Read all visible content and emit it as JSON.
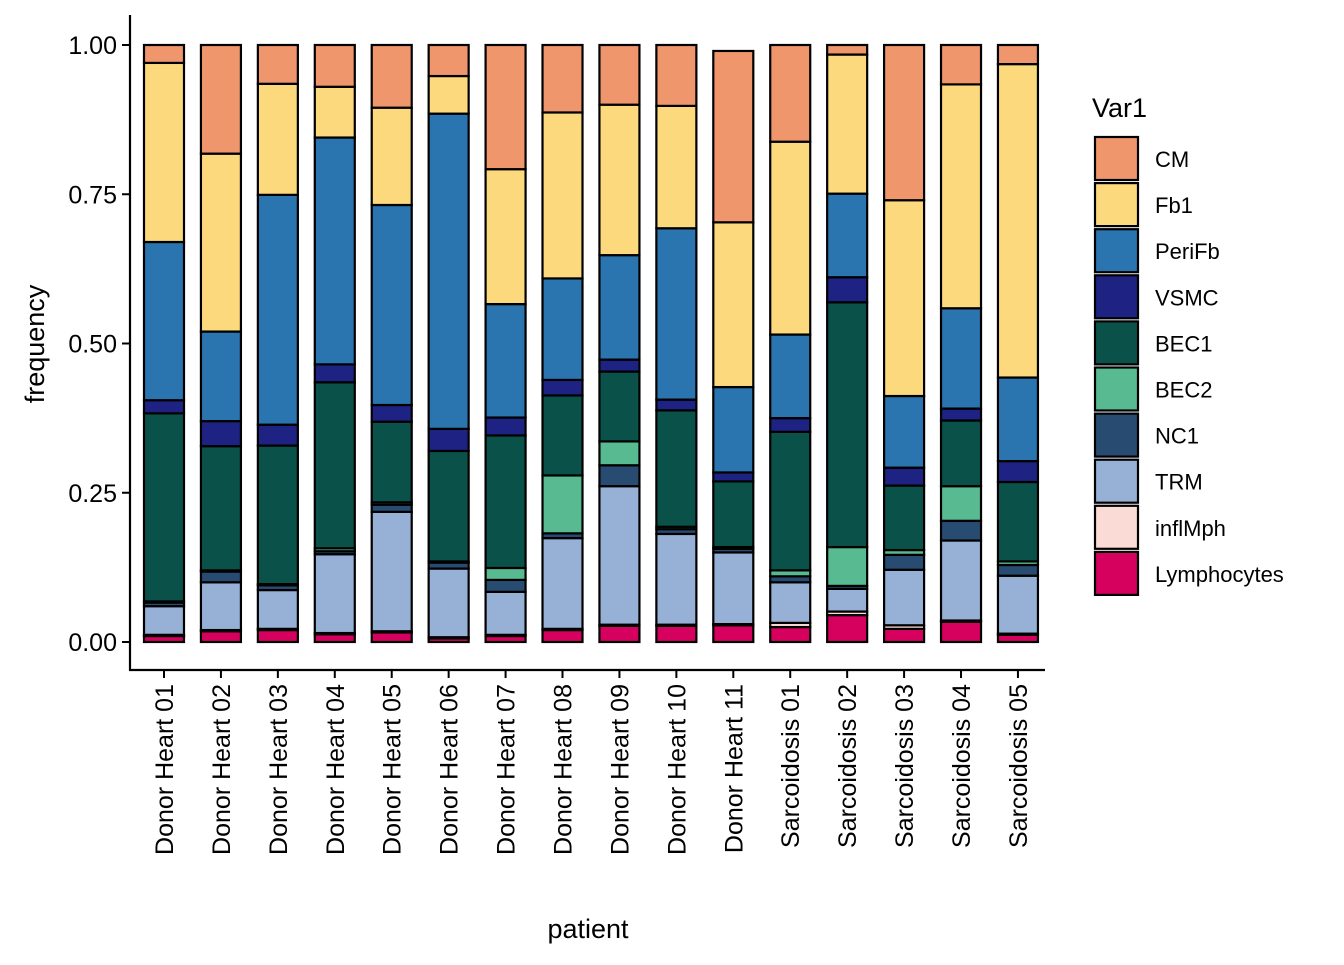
{
  "chart_data": {
    "type": "bar",
    "stacked": true,
    "xlabel": "patient",
    "ylabel": "frequency",
    "ylim": [
      0,
      1
    ],
    "yticks": [
      "0.00",
      "0.25",
      "0.50",
      "0.75",
      "1.00"
    ],
    "legend_title": "Var1",
    "legend_position": "right",
    "grid": false,
    "categories": [
      "Donor Heart 01",
      "Donor Heart 02",
      "Donor Heart 03",
      "Donor Heart 04",
      "Donor Heart 05",
      "Donor Heart 06",
      "Donor Heart 07",
      "Donor Heart 08",
      "Donor Heart 09",
      "Donor Heart 10",
      "Donor Heart 11",
      "Sarcoidosis 01",
      "Sarcoidosis 02",
      "Sarcoidosis 03",
      "Sarcoidosis 04",
      "Sarcoidosis 05"
    ],
    "series": [
      {
        "name": "Lymphocytes",
        "color": "#d6005e",
        "values": [
          0.01,
          0.018,
          0.02,
          0.013,
          0.016,
          0.006,
          0.01,
          0.02,
          0.027,
          0.027,
          0.028,
          0.025,
          0.045,
          0.022,
          0.034,
          0.012
        ]
      },
      {
        "name": "inflMph",
        "color": "#fadbd5",
        "values": [
          0.002,
          0.002,
          0.002,
          0.002,
          0.002,
          0.002,
          0.002,
          0.002,
          0.002,
          0.002,
          0.002,
          0.007,
          0.006,
          0.006,
          0.002,
          0.002
        ]
      },
      {
        "name": "TRM",
        "color": "#97b0d6",
        "values": [
          0.048,
          0.08,
          0.065,
          0.132,
          0.2,
          0.115,
          0.072,
          0.152,
          0.232,
          0.152,
          0.12,
          0.068,
          0.038,
          0.093,
          0.134,
          0.097
        ]
      },
      {
        "name": "NC1",
        "color": "#284b72",
        "values": [
          0.006,
          0.018,
          0.008,
          0.005,
          0.012,
          0.01,
          0.02,
          0.008,
          0.035,
          0.008,
          0.006,
          0.01,
          0.005,
          0.025,
          0.033,
          0.018
        ]
      },
      {
        "name": "BEC2",
        "color": "#57ba91",
        "values": [
          0.002,
          0.002,
          0.002,
          0.005,
          0.004,
          0.002,
          0.02,
          0.097,
          0.04,
          0.004,
          0.003,
          0.01,
          0.065,
          0.008,
          0.058,
          0.006
        ]
      },
      {
        "name": "BEC1",
        "color": "#0a5249",
        "values": [
          0.315,
          0.208,
          0.232,
          0.278,
          0.135,
          0.185,
          0.222,
          0.134,
          0.117,
          0.195,
          0.11,
          0.232,
          0.41,
          0.108,
          0.11,
          0.133
        ]
      },
      {
        "name": "VSMC",
        "color": "#1e2282",
        "values": [
          0.022,
          0.042,
          0.035,
          0.03,
          0.028,
          0.037,
          0.03,
          0.026,
          0.02,
          0.018,
          0.015,
          0.023,
          0.042,
          0.03,
          0.02,
          0.035
        ]
      },
      {
        "name": "PeriFb",
        "color": "#2a74b0",
        "values": [
          0.265,
          0.15,
          0.385,
          0.38,
          0.335,
          0.528,
          0.19,
          0.17,
          0.175,
          0.287,
          0.143,
          0.14,
          0.14,
          0.12,
          0.168,
          0.14
        ]
      },
      {
        "name": "Fb1",
        "color": "#fcd97c",
        "values": [
          0.3,
          0.298,
          0.186,
          0.085,
          0.163,
          0.063,
          0.226,
          0.278,
          0.252,
          0.205,
          0.276,
          0.323,
          0.233,
          0.328,
          0.375,
          0.525
        ]
      },
      {
        "name": "CM",
        "color": "#f0966d",
        "values": [
          0.03,
          0.182,
          0.065,
          0.07,
          0.105,
          0.052,
          0.208,
          0.113,
          0.1,
          0.102,
          0.287,
          0.162,
          0.016,
          0.26,
          0.066,
          0.032
        ]
      }
    ]
  }
}
